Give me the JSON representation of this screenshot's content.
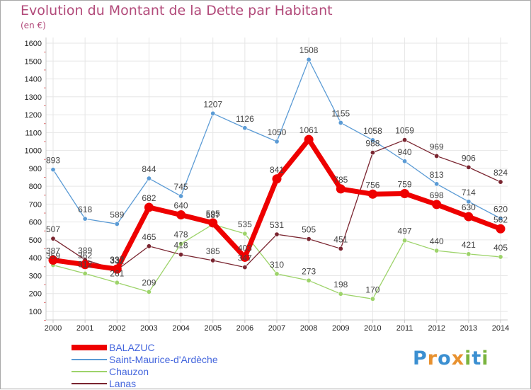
{
  "title": "Evolution du Montant de la Dette par Habitant",
  "subtitle": "(en €)",
  "logo": "Proxiti",
  "colors": {
    "title": "#b24a7a",
    "axis": "#c8c8c8",
    "grid": "#e6e6e6",
    "tick_text": "#222222",
    "label_text": "#444444",
    "legend_text": "#4466dd"
  },
  "chart_data": {
    "type": "line",
    "title": "Evolution du Montant de la Dette par Habitant",
    "subtitle": "(en €)",
    "x": [
      2000,
      2001,
      2002,
      2003,
      2004,
      2005,
      2006,
      2007,
      2008,
      2009,
      2010,
      2011,
      2012,
      2013,
      2014
    ],
    "ylim": [
      100,
      1600
    ],
    "yticks": [
      100,
      200,
      300,
      400,
      500,
      600,
      700,
      800,
      900,
      1000,
      1100,
      1200,
      1300,
      1400,
      1500,
      1600
    ],
    "grid": true,
    "legend_position": "bottom-left",
    "series": [
      {
        "name": "Saint-Maurice-d'Ardèche",
        "color": "#5b9bd5",
        "values": [
          893,
          618,
          589,
          844,
          745,
          1207,
          1126,
          1050,
          1508,
          1155,
          1058,
          940,
          813,
          714,
          620
        ]
      },
      {
        "name": "Chauzon",
        "color": "#9dd36a",
        "values": [
          359,
          312,
          261,
          209,
          478,
          587,
          535,
          310,
          273,
          198,
          170,
          497,
          440,
          421,
          405
        ]
      },
      {
        "name": "Lanas",
        "color": "#7a2530",
        "values": [
          507,
          389,
          332,
          465,
          418,
          385,
          347,
          531,
          505,
          451,
          988,
          1059,
          969,
          906,
          824
        ]
      },
      {
        "name": "BALAZUC",
        "color": "#ee0000",
        "values": [
          387,
          362,
          337,
          682,
          640,
          595,
          403,
          841,
          1061,
          785,
          756,
          759,
          698,
          630,
          562
        ]
      }
    ]
  }
}
